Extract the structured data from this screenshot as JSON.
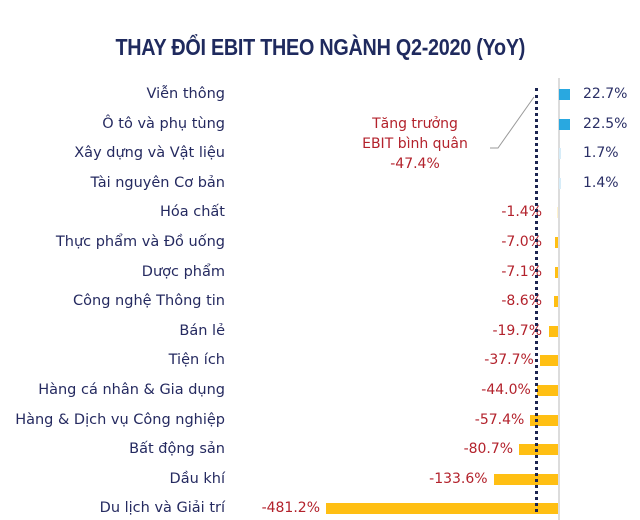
{
  "title": "THAY ĐỔI EBIT THEO NGÀNH Q2-2020 (YoY)",
  "annotation": {
    "line1": "Tăng trưởng",
    "line2": "EBIT bình quân",
    "line3": "-47.4%"
  },
  "colors": {
    "positive_bar": "#29a8e0",
    "negative_bar": "#ffbf13",
    "average_line": "#1b2450",
    "negative_label": "#b3222c",
    "positive_label": "#2a2f66",
    "category_label": "#252a60",
    "title": "#1f2a5e"
  },
  "rows": [
    {
      "label": "Viễn thông",
      "value": 22.7,
      "text": "22.7%"
    },
    {
      "label": "Ô tô và phụ tùng",
      "value": 22.5,
      "text": "22.5%"
    },
    {
      "label": "Xây dựng và Vật liệu",
      "value": 1.7,
      "text": "1.7%"
    },
    {
      "label": "Tài nguyên Cơ bản",
      "value": 1.4,
      "text": "1.4%"
    },
    {
      "label": "Hóa chất",
      "value": -1.4,
      "text": "-1.4%"
    },
    {
      "label": "Thực phẩm và Đồ uống",
      "value": -7.0,
      "text": "-7.0%"
    },
    {
      "label": "Dược phẩm",
      "value": -7.1,
      "text": "-7.1%"
    },
    {
      "label": "Công nghệ Thông tin",
      "value": -8.6,
      "text": "-8.6%"
    },
    {
      "label": "Bán lẻ",
      "value": -19.7,
      "text": "-19.7%"
    },
    {
      "label": "Tiện ích",
      "value": -37.7,
      "text": "-37.7%"
    },
    {
      "label": "Hàng cá nhân & Gia dụng",
      "value": -44.0,
      "text": "-44.0%"
    },
    {
      "label": "Hàng & Dịch vụ Công nghiệp",
      "value": -57.4,
      "text": "-57.4%"
    },
    {
      "label": "Bất động sản",
      "value": -80.7,
      "text": "-80.7%"
    },
    {
      "label": "Dầu khí",
      "value": -133.6,
      "text": "-133.6%"
    },
    {
      "label": "Du lịch và Giải trí",
      "value": -481.2,
      "text": "-481.2%"
    }
  ],
  "chart_data": {
    "type": "bar",
    "orientation": "horizontal",
    "title": "THAY ĐỔI EBIT THEO NGÀNH Q2-2020 (YoY)",
    "xlabel": "",
    "ylabel": "",
    "grid": false,
    "legend": null,
    "categories": [
      "Viễn thông",
      "Ô tô và phụ tùng",
      "Xây dựng và Vật liệu",
      "Tài nguyên Cơ bản",
      "Hóa chất",
      "Thực phẩm và Đồ uống",
      "Dược phẩm",
      "Công nghệ Thông tin",
      "Bán lẻ",
      "Tiện ích",
      "Hàng cá nhân & Gia dụng",
      "Hàng & Dịch vụ Công nghiệp",
      "Bất động sản",
      "Dầu khí",
      "Du lịch và Giải trí"
    ],
    "values": [
      22.7,
      22.5,
      1.7,
      1.4,
      -1.4,
      -7.0,
      -7.1,
      -8.6,
      -19.7,
      -37.7,
      -44.0,
      -57.4,
      -80.7,
      -133.6,
      -481.2
    ],
    "unit": "%",
    "reference_line": {
      "value": -47.4,
      "label": "Tăng trưởng EBIT bình quân -47.4%",
      "style": "dotted"
    },
    "xlim": [
      -481.2,
      22.7
    ]
  }
}
